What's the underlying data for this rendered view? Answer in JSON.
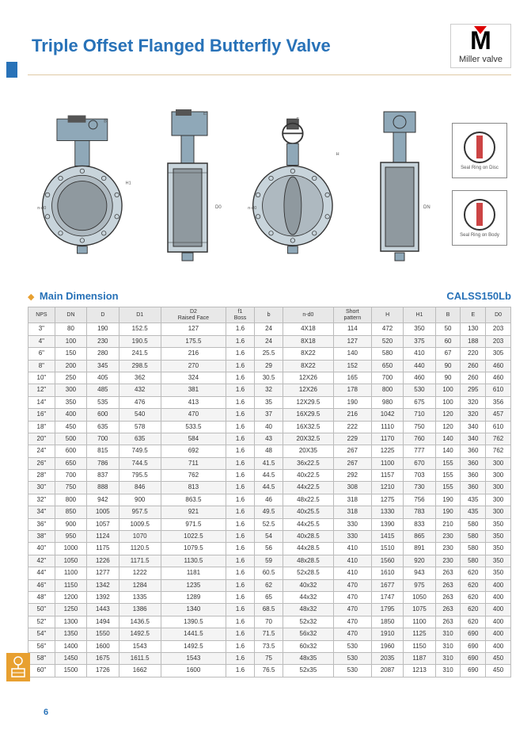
{
  "header": {
    "title": "Triple Offset Flanged Butterfly Valve",
    "brand": "Miller valve"
  },
  "detail_labels": [
    "Seal Ring on Disc",
    "Seal Ring on Body"
  ],
  "section": {
    "title": "Main Dimension",
    "class": "CALSS150Lb"
  },
  "table": {
    "columns": [
      "NPS",
      "DN",
      "D",
      "D1",
      "D2 Raised Face",
      "f1 Boss",
      "b",
      "n-d0",
      "Short pattern",
      "H",
      "H1",
      "B",
      "E",
      "D0"
    ],
    "rows": [
      [
        "3\"",
        "80",
        "190",
        "152.5",
        "127",
        "1.6",
        "24",
        "4X18",
        "114",
        "472",
        "350",
        "50",
        "130",
        "203"
      ],
      [
        "4\"",
        "100",
        "230",
        "190.5",
        "175.5",
        "1.6",
        "24",
        "8X18",
        "127",
        "520",
        "375",
        "60",
        "188",
        "203"
      ],
      [
        "6\"",
        "150",
        "280",
        "241.5",
        "216",
        "1.6",
        "25.5",
        "8X22",
        "140",
        "580",
        "410",
        "67",
        "220",
        "305"
      ],
      [
        "8\"",
        "200",
        "345",
        "298.5",
        "270",
        "1.6",
        "29",
        "8X22",
        "152",
        "650",
        "440",
        "90",
        "260",
        "460"
      ],
      [
        "10\"",
        "250",
        "405",
        "362",
        "324",
        "1.6",
        "30.5",
        "12X26",
        "165",
        "700",
        "460",
        "90",
        "260",
        "460"
      ],
      [
        "12\"",
        "300",
        "485",
        "432",
        "381",
        "1.6",
        "32",
        "12X26",
        "178",
        "800",
        "530",
        "100",
        "295",
        "610"
      ],
      [
        "14\"",
        "350",
        "535",
        "476",
        "413",
        "1.6",
        "35",
        "12X29.5",
        "190",
        "980",
        "675",
        "100",
        "320",
        "356"
      ],
      [
        "16\"",
        "400",
        "600",
        "540",
        "470",
        "1.6",
        "37",
        "16X29.5",
        "216",
        "1042",
        "710",
        "120",
        "320",
        "457"
      ],
      [
        "18\"",
        "450",
        "635",
        "578",
        "533.5",
        "1.6",
        "40",
        "16X32.5",
        "222",
        "1110",
        "750",
        "120",
        "340",
        "610"
      ],
      [
        "20\"",
        "500",
        "700",
        "635",
        "584",
        "1.6",
        "43",
        "20X32.5",
        "229",
        "1170",
        "760",
        "140",
        "340",
        "762"
      ],
      [
        "24\"",
        "600",
        "815",
        "749.5",
        "692",
        "1.6",
        "48",
        "20X35",
        "267",
        "1225",
        "777",
        "140",
        "360",
        "762"
      ],
      [
        "26\"",
        "650",
        "786",
        "744.5",
        "711",
        "1.6",
        "41.5",
        "36x22.5",
        "267",
        "1100",
        "670",
        "155",
        "360",
        "300"
      ],
      [
        "28\"",
        "700",
        "837",
        "795.5",
        "762",
        "1.6",
        "44.5",
        "40x22.5",
        "292",
        "1157",
        "703",
        "155",
        "360",
        "300"
      ],
      [
        "30\"",
        "750",
        "888",
        "846",
        "813",
        "1.6",
        "44.5",
        "44x22.5",
        "308",
        "1210",
        "730",
        "155",
        "360",
        "300"
      ],
      [
        "32\"",
        "800",
        "942",
        "900",
        "863.5",
        "1.6",
        "46",
        "48x22.5",
        "318",
        "1275",
        "756",
        "190",
        "435",
        "300"
      ],
      [
        "34\"",
        "850",
        "1005",
        "957.5",
        "921",
        "1.6",
        "49.5",
        "40x25.5",
        "318",
        "1330",
        "783",
        "190",
        "435",
        "300"
      ],
      [
        "36\"",
        "900",
        "1057",
        "1009.5",
        "971.5",
        "1.6",
        "52.5",
        "44x25.5",
        "330",
        "1390",
        "833",
        "210",
        "580",
        "350"
      ],
      [
        "38\"",
        "950",
        "1124",
        "1070",
        "1022.5",
        "1.6",
        "54",
        "40x28.5",
        "330",
        "1415",
        "865",
        "230",
        "580",
        "350"
      ],
      [
        "40\"",
        "1000",
        "1175",
        "1120.5",
        "1079.5",
        "1.6",
        "56",
        "44x28.5",
        "410",
        "1510",
        "891",
        "230",
        "580",
        "350"
      ],
      [
        "42\"",
        "1050",
        "1226",
        "1171.5",
        "1130.5",
        "1.6",
        "59",
        "48x28.5",
        "410",
        "1560",
        "920",
        "230",
        "580",
        "350"
      ],
      [
        "44\"",
        "1100",
        "1277",
        "1222",
        "1181",
        "1.6",
        "60.5",
        "52x28.5",
        "410",
        "1610",
        "943",
        "263",
        "620",
        "350"
      ],
      [
        "46\"",
        "1150",
        "1342",
        "1284",
        "1235",
        "1.6",
        "62",
        "40x32",
        "470",
        "1677",
        "975",
        "263",
        "620",
        "400"
      ],
      [
        "48\"",
        "1200",
        "1392",
        "1335",
        "1289",
        "1.6",
        "65",
        "44x32",
        "470",
        "1747",
        "1050",
        "263",
        "620",
        "400"
      ],
      [
        "50\"",
        "1250",
        "1443",
        "1386",
        "1340",
        "1.6",
        "68.5",
        "48x32",
        "470",
        "1795",
        "1075",
        "263",
        "620",
        "400"
      ],
      [
        "52\"",
        "1300",
        "1494",
        "1436.5",
        "1390.5",
        "1.6",
        "70",
        "52x32",
        "470",
        "1850",
        "1100",
        "263",
        "620",
        "400"
      ],
      [
        "54\"",
        "1350",
        "1550",
        "1492.5",
        "1441.5",
        "1.6",
        "71.5",
        "56x32",
        "470",
        "1910",
        "1125",
        "310",
        "690",
        "400"
      ],
      [
        "56\"",
        "1400",
        "1600",
        "1543",
        "1492.5",
        "1.6",
        "73.5",
        "60x32",
        "530",
        "1960",
        "1150",
        "310",
        "690",
        "400"
      ],
      [
        "58\"",
        "1450",
        "1675",
        "1611.5",
        "1543",
        "1.6",
        "75",
        "48x35",
        "530",
        "2035",
        "1187",
        "310",
        "690",
        "450"
      ],
      [
        "60\"",
        "1500",
        "1726",
        "1662",
        "1600",
        "1.6",
        "76.5",
        "52x35",
        "530",
        "2087",
        "1213",
        "310",
        "690",
        "450"
      ]
    ]
  },
  "page_number": "6",
  "colors": {
    "primary": "#2872b8",
    "accent": "#e8a030",
    "steel": "#8fa8b8",
    "red": "#c44"
  }
}
